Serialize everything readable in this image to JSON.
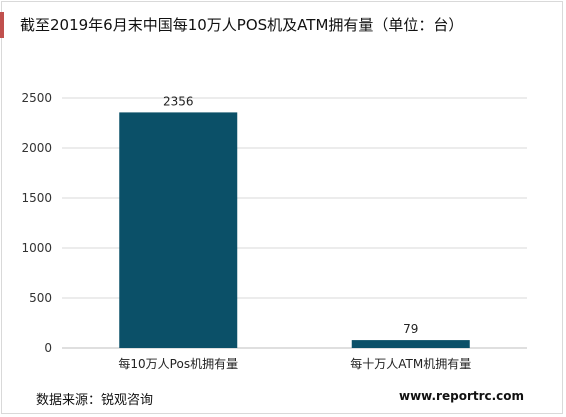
{
  "title": "截至2019年6月末中国每10万人POS机及ATM拥有量（单位：台）",
  "source_text": "数据来源：锐观咨询",
  "website_text": "www.reportrc.com",
  "colors": {
    "bar": "#0b5068",
    "accent": "#c0504d",
    "grid": "#d9d9d9"
  },
  "chart_data": {
    "type": "bar",
    "title": "截至2019年6月末中国每10万人POS机及ATM拥有量（单位：台）",
    "categories": [
      "每10万人Pos机拥有量",
      "每十万人ATM机拥有量"
    ],
    "values": [
      2356,
      79
    ],
    "data_labels": [
      "2356",
      "79"
    ],
    "yticks": [
      0,
      500,
      1000,
      1500,
      2000,
      2500
    ],
    "ylim": [
      0,
      2500
    ],
    "grid": true,
    "legend": "none",
    "xlabel": "",
    "ylabel": ""
  }
}
